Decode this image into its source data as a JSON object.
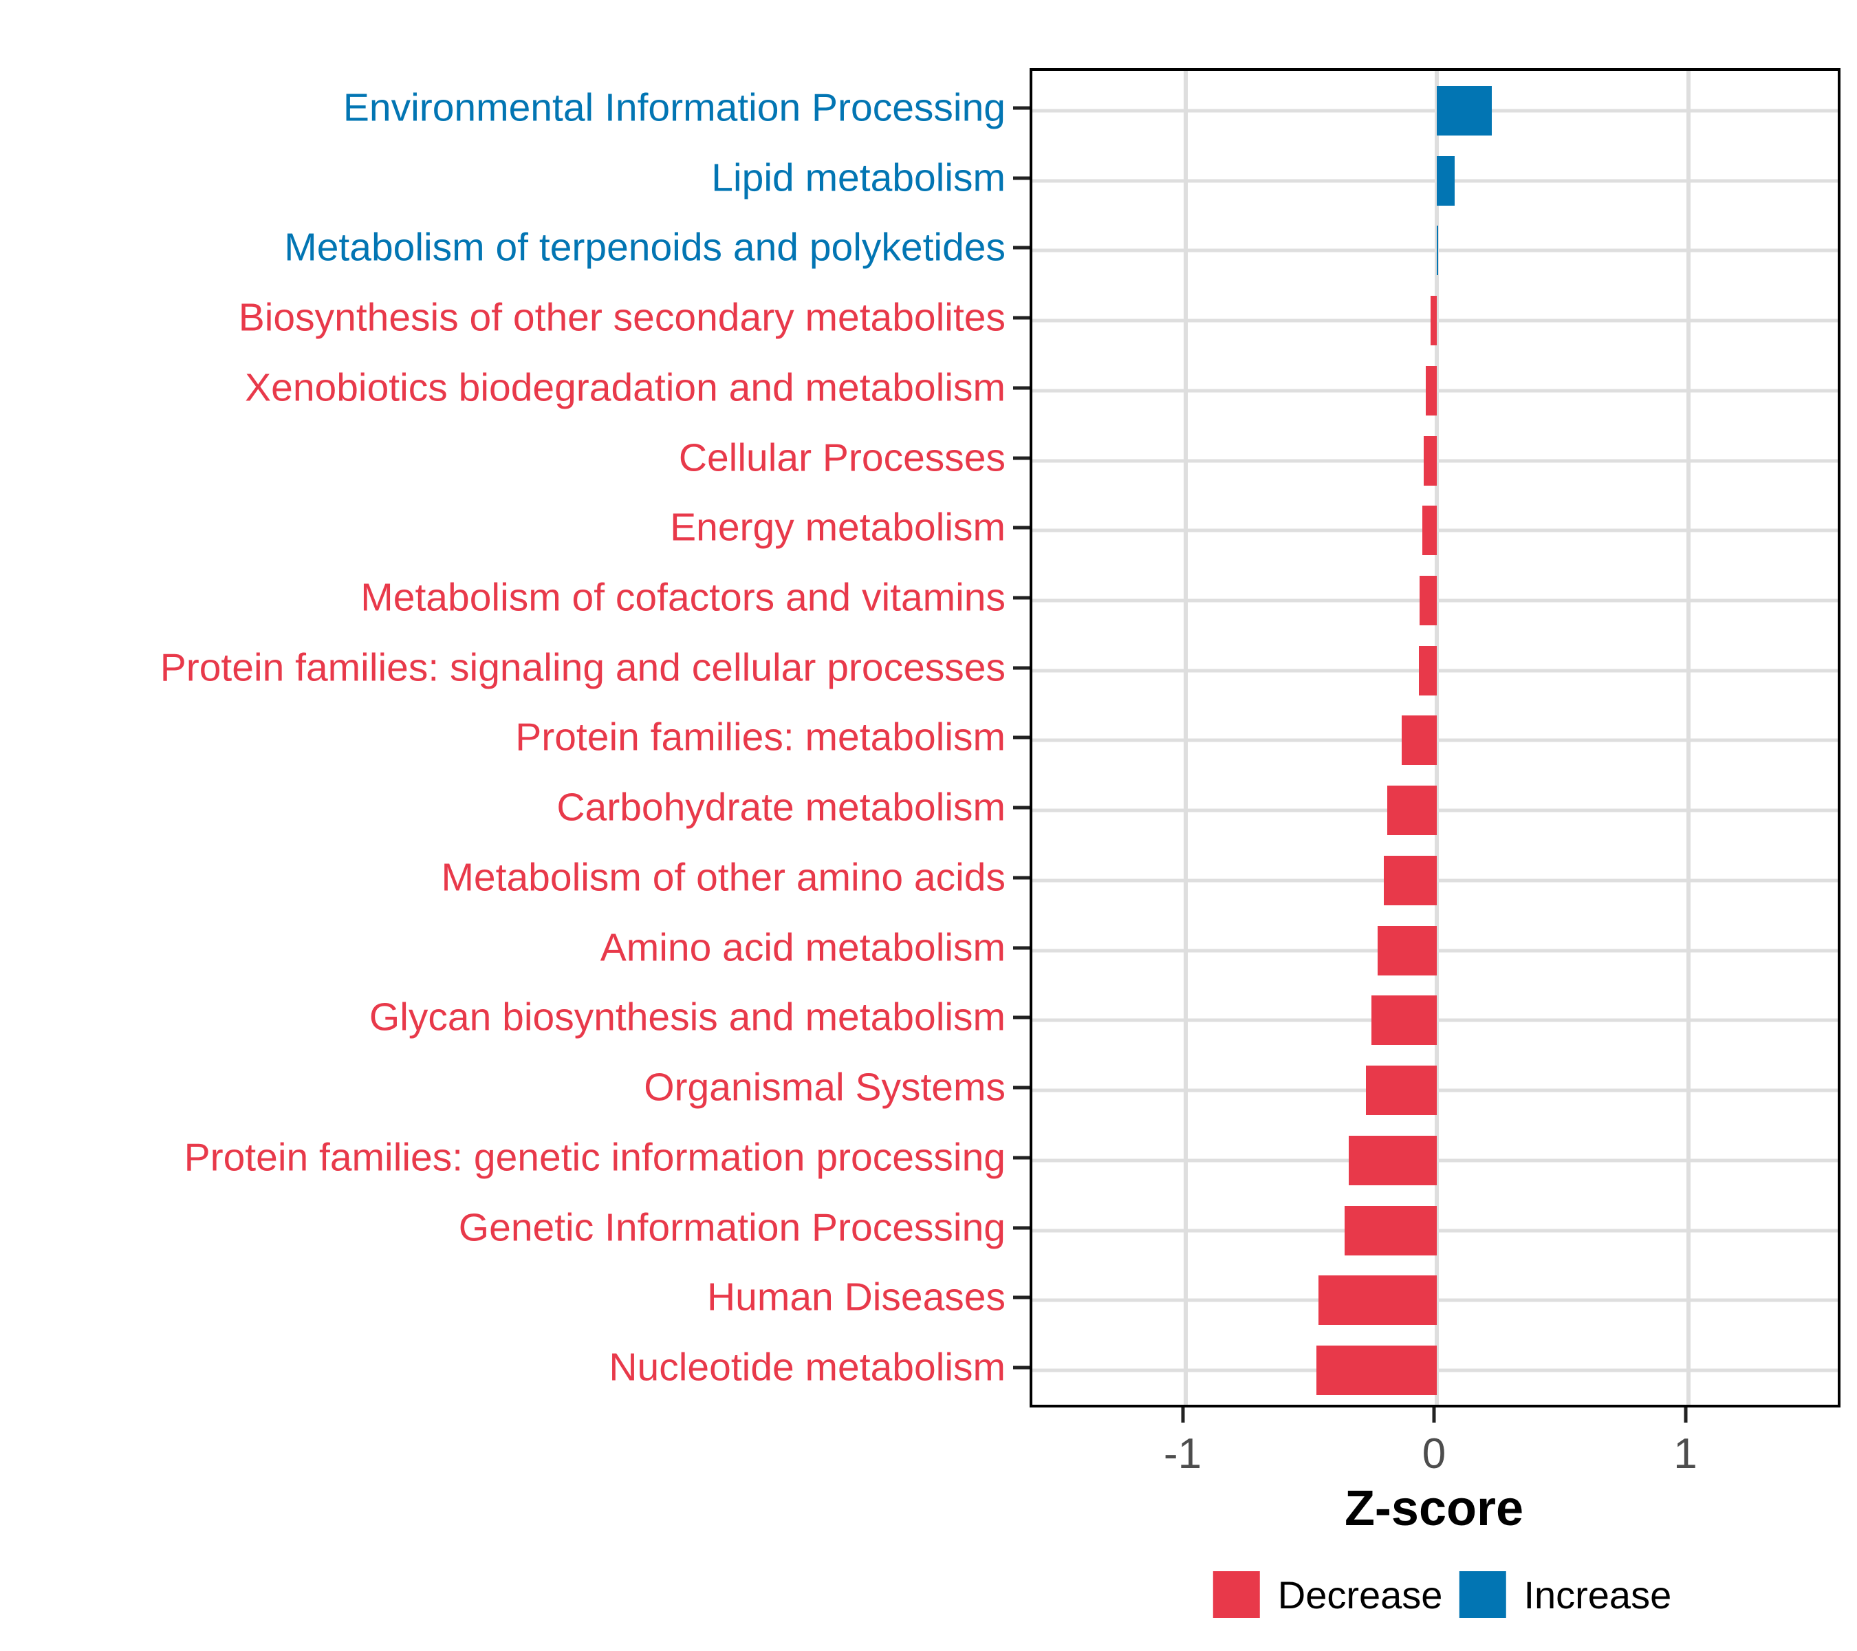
{
  "chart_data": {
    "type": "bar",
    "orientation": "horizontal",
    "xlabel": "Z-score",
    "xlim": [
      -1.61,
      1.62
    ],
    "x_ticks": [
      -1,
      0,
      1
    ],
    "x_tick_labels": [
      "-1",
      "0",
      "1"
    ],
    "grid": "major-only",
    "legend_position": "bottom-center",
    "categories": [
      "Environmental Information Processing",
      "Lipid metabolism",
      "Metabolism of terpenoids and polyketides",
      "Biosynthesis of other secondary metabolites",
      "Xenobiotics biodegradation and metabolism",
      "Cellular Processes",
      "Energy metabolism",
      "Metabolism of cofactors and vitamins",
      "Protein families: signaling and cellular processes",
      "Protein families: metabolism",
      "Carbohydrate metabolism",
      "Metabolism of other amino acids",
      "Amino acid metabolism",
      "Glycan biosynthesis and metabolism",
      "Organismal Systems",
      "Protein families: genetic information processing",
      "Genetic Information Processing",
      "Human Diseases",
      "Nucleotide metabolism"
    ],
    "values": [
      0.22,
      0.07,
      0.004,
      -0.025,
      -0.045,
      -0.053,
      -0.058,
      -0.069,
      -0.072,
      -0.14,
      -0.197,
      -0.21,
      -0.234,
      -0.259,
      -0.281,
      -0.351,
      -0.366,
      -0.47,
      -0.48
    ],
    "directions": [
      "Increase",
      "Increase",
      "Increase",
      "Decrease",
      "Decrease",
      "Decrease",
      "Decrease",
      "Decrease",
      "Decrease",
      "Decrease",
      "Decrease",
      "Decrease",
      "Decrease",
      "Decrease",
      "Decrease",
      "Decrease",
      "Decrease",
      "Decrease",
      "Decrease"
    ],
    "legend": [
      {
        "label": "Decrease",
        "color": "#E8394A"
      },
      {
        "label": "Increase",
        "color": "#0275B3"
      }
    ]
  },
  "colors": {
    "decrease": "#E8394A",
    "increase": "#0275B3",
    "gridline": "#DEDEDE",
    "axis_text": "#4D4D4D",
    "axis_line": "#222222",
    "panel_border": "#000000",
    "background": "#FFFFFF"
  }
}
